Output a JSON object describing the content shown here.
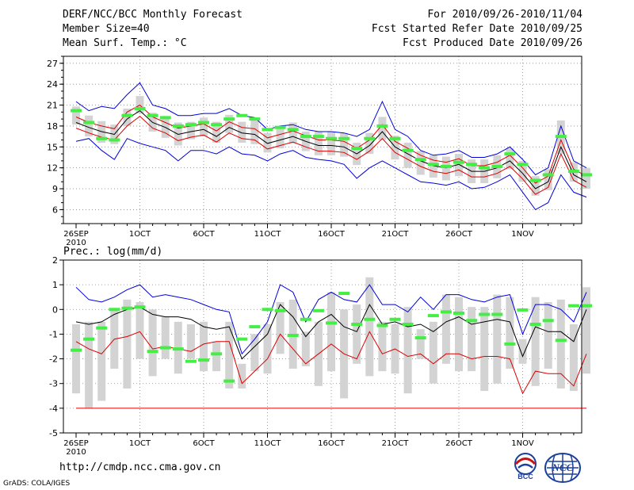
{
  "header": {
    "title": "DERF/NCC/BCC Monthly Forecast",
    "member": "Member Size=40",
    "variable": "Mean Surf. Temp.: °C",
    "period": "For 2010/09/26-2010/11/04",
    "started": "Fcst Started Refer Date 2010/09/25",
    "produced": "Fcst Produced Date 2010/09/26"
  },
  "footer": {
    "url": "http://cmdp.ncc.cma.gov.cn",
    "credit": "GrADS: COLA/IGES"
  },
  "logos": {
    "bcc_label": "BCC",
    "ncc_label": "NCC"
  },
  "colors": {
    "envelope": "#0000dd",
    "spread": "#dd0000",
    "mean": "#000000",
    "marker": "#44ee44",
    "box": "#d3d3d4"
  },
  "chart_data": [
    {
      "type": "box-line",
      "title": "Mean Surf. Temp.: °C",
      "ylim": [
        4,
        28
      ],
      "yticks": [
        6,
        9,
        12,
        15,
        18,
        21,
        24,
        27
      ],
      "xlabels": [
        "26SEP",
        "1OCT",
        "6OCT",
        "11OCT",
        "16OCT",
        "21OCT",
        "26OCT",
        "1NOV"
      ],
      "xlabel_year": "2010",
      "days": 40,
      "mean": [
        18.5,
        17.8,
        17.2,
        16.8,
        19.0,
        20.2,
        18.5,
        17.8,
        16.8,
        17.2,
        17.5,
        16.5,
        17.8,
        17.0,
        16.8,
        15.5,
        16.0,
        16.5,
        15.8,
        15.2,
        15.2,
        15.0,
        14.0,
        15.2,
        17.2,
        15.0,
        14.0,
        13.0,
        12.3,
        12.0,
        12.5,
        11.5,
        11.5,
        12.0,
        13.0,
        11.2,
        9.0,
        10.0,
        15.0,
        11.0,
        10.0
      ],
      "upper": [
        21.5,
        20.2,
        20.8,
        20.5,
        22.5,
        24.2,
        21.0,
        20.5,
        19.5,
        19.5,
        19.8,
        19.8,
        20.5,
        19.5,
        19.2,
        17.5,
        18.0,
        18.2,
        17.5,
        17.2,
        17.2,
        17.0,
        16.5,
        17.5,
        21.5,
        17.5,
        16.5,
        14.5,
        13.8,
        14.0,
        14.5,
        13.5,
        13.5,
        14.0,
        15.0,
        13.2,
        11.0,
        12.0,
        18.0,
        13.0,
        12.0
      ],
      "lower": [
        15.8,
        16.2,
        14.5,
        13.2,
        16.2,
        15.5,
        15.0,
        14.5,
        13.0,
        14.5,
        14.5,
        14.0,
        15.0,
        14.0,
        13.8,
        13.0,
        14.0,
        14.5,
        13.5,
        13.2,
        13.0,
        12.5,
        10.5,
        12.0,
        13.0,
        12.0,
        11.0,
        10.0,
        9.8,
        9.5,
        10.0,
        9.0,
        9.2,
        10.0,
        11.0,
        8.5,
        6.0,
        7.0,
        11.0,
        8.5,
        7.8
      ],
      "spread_hi": [
        19.3,
        18.5,
        18.0,
        17.6,
        20.0,
        21.0,
        19.3,
        18.5,
        17.7,
        18.0,
        18.3,
        17.3,
        18.6,
        17.8,
        17.6,
        16.3,
        16.8,
        17.3,
        16.6,
        16.0,
        16.0,
        15.8,
        14.8,
        16.0,
        18.2,
        15.8,
        14.8,
        13.8,
        13.1,
        12.8,
        13.3,
        12.3,
        12.3,
        12.8,
        13.8,
        12.0,
        9.8,
        10.8,
        16.0,
        11.8,
        10.8
      ],
      "spread_lo": [
        17.7,
        17.0,
        16.4,
        16.0,
        18.0,
        19.4,
        17.7,
        17.0,
        15.9,
        16.4,
        16.7,
        15.7,
        17.0,
        16.2,
        16.0,
        14.7,
        15.2,
        15.7,
        15.0,
        14.4,
        14.4,
        14.2,
        13.2,
        14.4,
        16.2,
        14.2,
        13.2,
        12.2,
        11.5,
        11.2,
        11.7,
        10.7,
        10.7,
        11.2,
        12.2,
        10.4,
        8.2,
        9.2,
        14.0,
        10.2,
        9.2
      ],
      "box_hi": [
        20.8,
        19.5,
        18.7,
        18.2,
        20.5,
        22.3,
        19.9,
        19.2,
        18.5,
        18.6,
        19.2,
        18.6,
        19.6,
        18.6,
        19.2,
        17.0,
        17.8,
        18.5,
        17.2,
        17.2,
        17.2,
        17.0,
        15.6,
        17.0,
        19.3,
        16.6,
        15.6,
        14.4,
        13.8,
        13.6,
        14.0,
        13.2,
        13.2,
        13.8,
        14.8,
        13.0,
        10.8,
        11.8,
        18.8,
        12.8,
        12.0
      ],
      "box_lo": [
        18.2,
        16.5,
        15.6,
        15.4,
        18.0,
        19.8,
        17.2,
        16.3,
        15.2,
        16.1,
        16.5,
        15.6,
        17.0,
        15.6,
        15.4,
        14.2,
        14.8,
        15.5,
        14.4,
        13.8,
        13.8,
        13.6,
        12.4,
        14.0,
        16.0,
        13.2,
        12.0,
        11.0,
        10.6,
        10.2,
        10.8,
        9.8,
        9.8,
        10.5,
        11.8,
        10.0,
        8.0,
        8.8,
        14.0,
        10.0,
        9.0
      ],
      "marker": [
        20.2,
        18.5,
        16.2,
        16.0,
        19.5,
        20.5,
        19.5,
        19.2,
        18.0,
        18.2,
        18.5,
        18.2,
        19.0,
        19.5,
        19.0,
        17.5,
        17.8,
        17.5,
        16.5,
        16.5,
        16.2,
        16.2,
        14.8,
        16.2,
        18.0,
        16.2,
        14.5,
        13.2,
        12.5,
        12.2,
        12.8,
        12.5,
        12.0,
        12.2,
        14.0,
        12.5,
        10.2,
        11.0,
        16.5,
        11.5,
        11.0
      ]
    },
    {
      "type": "box-line",
      "title": "Prec.: log(mm/d)",
      "ylim": [
        -5,
        2
      ],
      "yticks": [
        -5,
        -4,
        -3,
        -2,
        -1,
        0,
        1,
        2
      ],
      "xlabels": [
        "26SEP",
        "1OCT",
        "6OCT",
        "11OCT",
        "16OCT",
        "21OCT",
        "26OCT",
        "1NOV"
      ],
      "xlabel_year": "2010",
      "days": 40,
      "mean": [
        -0.5,
        -0.6,
        -0.5,
        -0.2,
        0.0,
        0.1,
        -0.2,
        -0.3,
        -0.3,
        -0.4,
        -0.7,
        -0.8,
        -0.7,
        -2.0,
        -1.5,
        -1.0,
        0.2,
        -0.3,
        -1.1,
        -0.5,
        -0.2,
        -0.7,
        -0.9,
        0.2,
        -0.6,
        -0.5,
        -0.7,
        -0.6,
        -0.9,
        -0.5,
        -0.3,
        -0.6,
        -0.5,
        -0.4,
        -0.5,
        -1.9,
        -0.7,
        -0.9,
        -0.9,
        -1.3,
        0.0
      ],
      "upper": [
        0.9,
        0.4,
        0.3,
        0.5,
        0.8,
        1.0,
        0.5,
        0.6,
        0.5,
        0.4,
        0.2,
        0.0,
        -0.1,
        -1.8,
        -1.2,
        -0.5,
        1.0,
        0.7,
        -0.5,
        0.4,
        0.7,
        0.4,
        0.3,
        1.0,
        0.2,
        0.2,
        -0.1,
        0.5,
        0.0,
        0.6,
        0.6,
        0.4,
        0.3,
        0.5,
        0.6,
        -1.0,
        0.2,
        0.2,
        0.0,
        -0.5,
        0.7
      ],
      "lower": [
        -4.0,
        -4.0,
        -4.0,
        -4.0,
        -4.0,
        -4.0,
        -4.0,
        -4.0,
        -4.0,
        -4.0,
        -4.0,
        -4.0,
        -4.0,
        -4.0,
        -4.0,
        -4.0,
        -4.0,
        -4.0,
        -4.0,
        -4.0,
        -4.0,
        -4.0,
        -4.0,
        -4.0,
        -4.0,
        -4.0,
        -4.0,
        -4.0,
        -4.0,
        -4.0,
        -4.0,
        -4.0,
        -4.0,
        -4.0,
        -4.0,
        -4.0,
        -4.0,
        -4.0,
        -4.0,
        -4.0,
        -4.0
      ],
      "spread_lo": [
        -1.3,
        -1.6,
        -1.8,
        -1.2,
        -1.1,
        -0.9,
        -1.6,
        -1.5,
        -1.6,
        -1.7,
        -1.4,
        -1.3,
        -1.3,
        -3.0,
        -2.5,
        -2.0,
        -1.0,
        -1.6,
        -2.2,
        -1.8,
        -1.4,
        -1.8,
        -2.0,
        -0.9,
        -1.8,
        -1.6,
        -1.9,
        -1.8,
        -2.2,
        -1.8,
        -1.8,
        -2.0,
        -1.9,
        -1.9,
        -2.0,
        -3.4,
        -2.5,
        -2.6,
        -2.6,
        -3.1,
        -1.8
      ],
      "box_hi": [
        -0.6,
        -0.5,
        -0.5,
        0.0,
        0.4,
        0.3,
        0.0,
        -0.3,
        -0.5,
        -0.6,
        -0.5,
        -1.3,
        -0.5,
        -2.2,
        -1.0,
        -0.6,
        0.3,
        0.4,
        -0.9,
        -0.5,
        0.7,
        0.0,
        0.2,
        1.3,
        -0.5,
        -0.6,
        0.1,
        -0.8,
        -0.5,
        0.6,
        0.5,
        0.1,
        0.1,
        0.6,
        0.5,
        -1.2,
        0.5,
        0.3,
        0.4,
        -0.6,
        0.9
      ],
      "box_lo": [
        -3.4,
        -4.0,
        -3.7,
        -2.4,
        -3.2,
        -2.0,
        -2.7,
        -2.0,
        -2.6,
        -2.0,
        -2.5,
        -2.5,
        -3.2,
        -3.2,
        -2.5,
        -2.6,
        -1.8,
        -2.4,
        -2.3,
        -3.1,
        -2.5,
        -3.6,
        -2.2,
        -2.7,
        -2.5,
        -2.6,
        -3.4,
        -2.0,
        -3.0,
        -2.2,
        -2.5,
        -2.5,
        -3.3,
        -3.0,
        -2.4,
        -2.2,
        -3.1,
        -2.4,
        -3.2,
        -3.3,
        -2.6
      ],
      "marker": [
        -1.65,
        -1.2,
        -0.75,
        0.0,
        0.05,
        0.1,
        -1.7,
        -1.55,
        -1.6,
        -2.1,
        -2.05,
        -1.8,
        -2.9,
        -1.2,
        -0.7,
        0.0,
        -0.05,
        -1.05,
        -0.4,
        -0.05,
        -0.55,
        0.65,
        -0.6,
        -0.4,
        -0.65,
        -0.4,
        -0.6,
        -1.15,
        -0.25,
        -0.1,
        -0.15,
        -0.45,
        -0.2,
        -0.2,
        -1.4,
        -0.02,
        -0.6,
        -0.45,
        -1.25,
        0.15,
        0.15
      ]
    }
  ]
}
